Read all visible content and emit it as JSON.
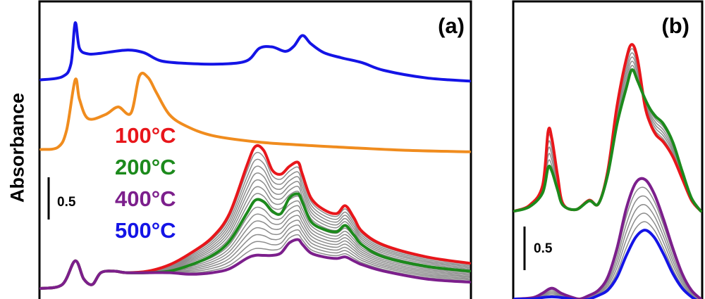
{
  "figure": {
    "ylabel": "Absorbance"
  },
  "chart_data": [
    {
      "type": "line",
      "panel_label": "(a)",
      "ylabel": "Absorbance",
      "scale_bar": "0.5",
      "legend": [
        "100°C",
        "200°C",
        "400°C",
        "500°C"
      ],
      "colors": {
        "100°C": "#e8161b",
        "200°C": "#1c8a1c",
        "400°C": "#7c1f8c",
        "500°C": "#1414e6",
        "orange": "#f08c1e",
        "intermediate": "#8c8c8c"
      },
      "x_range": [
        0,
        1
      ],
      "series": [
        {
          "name": "500°C",
          "stack": "top",
          "color": "#1414e6",
          "x": [
            0,
            0.05,
            0.07,
            0.08,
            0.09,
            0.11,
            0.14,
            0.2,
            0.24,
            0.28,
            0.34,
            0.42,
            0.48,
            0.51,
            0.54,
            0.57,
            0.59,
            0.61,
            0.63,
            0.66,
            0.7,
            0.75,
            0.8,
            0.9,
            1.0
          ],
          "values": [
            0.05,
            0.1,
            0.3,
            0.95,
            0.55,
            0.46,
            0.47,
            0.52,
            0.48,
            0.35,
            0.31,
            0.3,
            0.35,
            0.55,
            0.57,
            0.5,
            0.58,
            0.75,
            0.62,
            0.48,
            0.4,
            0.32,
            0.2,
            0.08,
            0.03
          ]
        },
        {
          "name": "",
          "stack": "middle",
          "color": "#f08c1e",
          "x": [
            0,
            0.04,
            0.06,
            0.08,
            0.09,
            0.11,
            0.15,
            0.18,
            0.21,
            0.23,
            0.25,
            0.27,
            0.3,
            0.34,
            0.4,
            0.5,
            0.6,
            0.7,
            0.85,
            1.0
          ],
          "values": [
            0.05,
            0.08,
            0.3,
            0.95,
            0.7,
            0.45,
            0.5,
            0.6,
            0.52,
            1.0,
            0.98,
            0.78,
            0.5,
            0.35,
            0.23,
            0.15,
            0.11,
            0.08,
            0.04,
            0.02
          ]
        },
        {
          "name": "100°C",
          "stack": "bottom",
          "color": "#e8161b",
          "x": [
            0,
            0.05,
            0.08,
            0.1,
            0.12,
            0.14,
            0.17,
            0.2,
            0.25,
            0.3,
            0.35,
            0.4,
            0.44,
            0.48,
            0.5,
            0.52,
            0.54,
            0.56,
            0.58,
            0.6,
            0.61,
            0.63,
            0.66,
            0.69,
            0.71,
            0.73,
            0.75,
            0.8,
            0.9,
            1.0
          ],
          "values": [
            0,
            0.05,
            0.35,
            0.12,
            0.05,
            0.2,
            0.22,
            0.2,
            0.22,
            0.3,
            0.45,
            0.65,
            0.95,
            1.55,
            1.8,
            1.75,
            1.5,
            1.45,
            1.55,
            1.6,
            1.45,
            1.15,
            1.0,
            0.95,
            1.05,
            0.9,
            0.72,
            0.55,
            0.4,
            0.32
          ]
        },
        {
          "name": "200°C",
          "stack": "bottom",
          "color": "#1c8a1c",
          "x": [
            0,
            0.05,
            0.08,
            0.1,
            0.12,
            0.14,
            0.17,
            0.2,
            0.25,
            0.3,
            0.35,
            0.4,
            0.44,
            0.48,
            0.5,
            0.52,
            0.54,
            0.56,
            0.58,
            0.6,
            0.61,
            0.63,
            0.66,
            0.69,
            0.71,
            0.73,
            0.75,
            0.8,
            0.9,
            1.0
          ],
          "values": [
            0,
            0.05,
            0.35,
            0.12,
            0.05,
            0.2,
            0.22,
            0.2,
            0.2,
            0.22,
            0.3,
            0.42,
            0.6,
            0.95,
            1.12,
            1.1,
            0.98,
            0.95,
            1.15,
            1.2,
            1.1,
            0.85,
            0.75,
            0.72,
            0.8,
            0.68,
            0.55,
            0.4,
            0.28,
            0.22
          ]
        },
        {
          "name": "400°C",
          "stack": "bottom",
          "color": "#7c1f8c",
          "x": [
            0,
            0.05,
            0.08,
            0.1,
            0.12,
            0.14,
            0.17,
            0.2,
            0.25,
            0.3,
            0.35,
            0.4,
            0.44,
            0.48,
            0.5,
            0.52,
            0.54,
            0.56,
            0.58,
            0.6,
            0.61,
            0.63,
            0.66,
            0.69,
            0.71,
            0.73,
            0.75,
            0.8,
            0.9,
            1.0
          ],
          "values": [
            0,
            0.05,
            0.35,
            0.12,
            0.05,
            0.2,
            0.22,
            0.2,
            0.2,
            0.2,
            0.18,
            0.2,
            0.25,
            0.38,
            0.42,
            0.42,
            0.42,
            0.45,
            0.58,
            0.62,
            0.56,
            0.45,
            0.4,
            0.38,
            0.4,
            0.35,
            0.3,
            0.22,
            0.12,
            0.08
          ]
        }
      ]
    },
    {
      "type": "line",
      "panel_label": "(b)",
      "scale_bar": "0.5",
      "x_range": [
        0,
        1
      ],
      "series": [
        {
          "name": "100°C",
          "stack": "upper",
          "color": "#e8161b",
          "x": [
            0,
            0.08,
            0.15,
            0.18,
            0.2,
            0.23,
            0.26,
            0.33,
            0.4,
            0.45,
            0.5,
            0.55,
            0.6,
            0.63,
            0.66,
            0.7,
            0.73,
            0.76,
            0.8,
            0.85,
            0.9,
            0.95,
            1.0
          ],
          "values": [
            0.0,
            0.08,
            0.35,
            1.1,
            1.0,
            0.5,
            0.1,
            0.02,
            0.15,
            0.1,
            0.55,
            1.45,
            2.1,
            2.3,
            2.1,
            1.45,
            1.2,
            1.05,
            0.95,
            0.75,
            0.45,
            0.15,
            0.0
          ]
        },
        {
          "name": "200°C",
          "stack": "upper",
          "color": "#1c8a1c",
          "x": [
            0,
            0.08,
            0.15,
            0.18,
            0.2,
            0.23,
            0.26,
            0.33,
            0.4,
            0.45,
            0.5,
            0.55,
            0.6,
            0.63,
            0.66,
            0.7,
            0.73,
            0.76,
            0.8,
            0.85,
            0.9,
            0.95,
            1.0
          ],
          "values": [
            0.0,
            0.06,
            0.25,
            0.6,
            0.55,
            0.3,
            0.08,
            0.02,
            0.14,
            0.1,
            0.5,
            1.2,
            1.7,
            1.95,
            1.8,
            1.55,
            1.4,
            1.3,
            1.2,
            0.95,
            0.55,
            0.18,
            0.0
          ]
        },
        {
          "name": "400°C",
          "stack": "lower",
          "color": "#7c1f8c",
          "x": [
            0,
            0.1,
            0.15,
            0.2,
            0.25,
            0.3,
            0.35,
            0.4,
            0.45,
            0.5,
            0.55,
            0.6,
            0.65,
            0.7,
            0.75,
            0.8,
            0.85,
            0.9,
            0.95,
            1.0
          ],
          "values": [
            0.0,
            0.02,
            0.08,
            0.15,
            0.08,
            0.03,
            0.0,
            0.05,
            0.12,
            0.3,
            0.7,
            1.25,
            1.6,
            1.65,
            1.45,
            1.1,
            0.7,
            0.35,
            0.12,
            0.0
          ]
        },
        {
          "name": "500°C",
          "stack": "lower",
          "color": "#1414e6",
          "x": [
            0,
            0.1,
            0.15,
            0.2,
            0.25,
            0.3,
            0.35,
            0.4,
            0.45,
            0.5,
            0.55,
            0.6,
            0.65,
            0.7,
            0.75,
            0.8,
            0.85,
            0.9,
            0.95,
            1.0
          ],
          "values": [
            0.0,
            0.0,
            0.02,
            0.03,
            0.02,
            0.0,
            -0.02,
            0.0,
            0.05,
            0.12,
            0.3,
            0.6,
            0.85,
            0.95,
            0.85,
            0.62,
            0.35,
            0.15,
            0.03,
            -0.05
          ]
        }
      ]
    }
  ]
}
